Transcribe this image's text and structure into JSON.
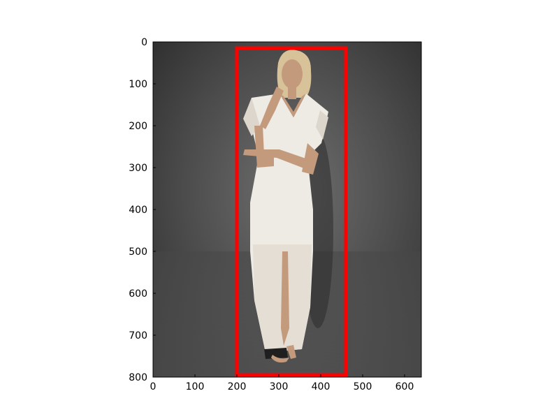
{
  "figure": {
    "image_subject": "photo",
    "x_ticks": [
      "0",
      "100",
      "200",
      "300",
      "400",
      "500",
      "600"
    ],
    "y_ticks": [
      "0",
      "100",
      "200",
      "300",
      "400",
      "500",
      "600",
      "700",
      "800"
    ]
  },
  "annotation": {
    "type": "bounding-box",
    "color": "#ff0000",
    "box_data_units": {
      "x0": 200,
      "y0": 15,
      "x1": 460,
      "y1": 795
    }
  },
  "colors": {
    "dress": "#eeeae4",
    "skin": "#c49a7c",
    "hair": "#d7c29a"
  }
}
